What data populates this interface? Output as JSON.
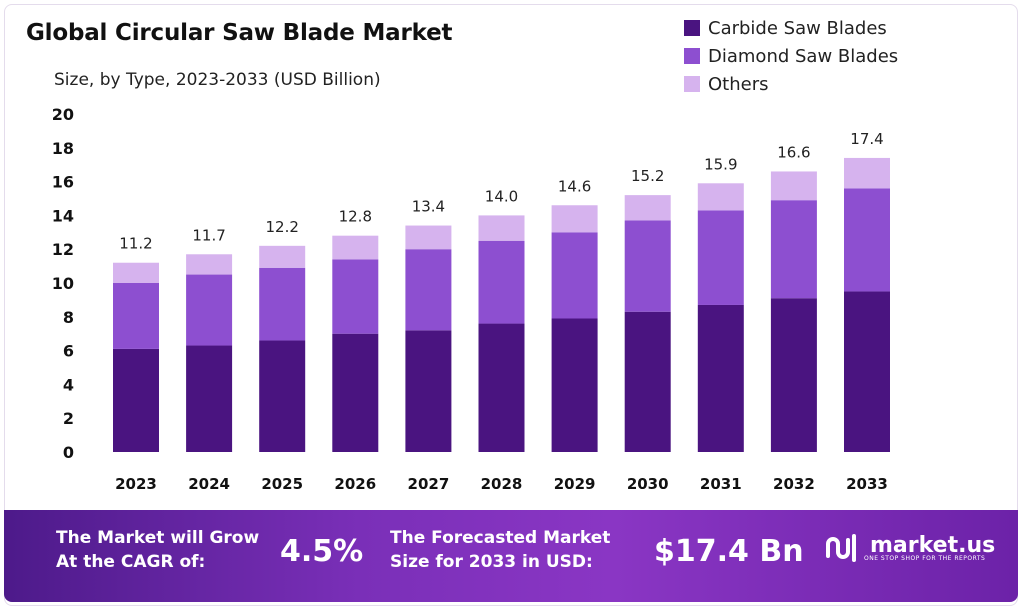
{
  "chart_data": {
    "type": "bar",
    "stacked": true,
    "title": "Global Circular Saw Blade Market",
    "subtitle": "Size, by Type, 2023-2033 (USD Billion)",
    "xlabel": "",
    "ylabel": "",
    "ylim": [
      0,
      20
    ],
    "yticks": [
      0,
      2,
      4,
      6,
      8,
      10,
      12,
      14,
      16,
      18,
      20
    ],
    "grid": false,
    "legend_position": "top-right",
    "categories": [
      "2023",
      "2024",
      "2025",
      "2026",
      "2027",
      "2028",
      "2029",
      "2030",
      "2031",
      "2032",
      "2033"
    ],
    "series": [
      {
        "name": "Carbide Saw Blades",
        "color": "#4a1480",
        "values": [
          6.1,
          6.3,
          6.6,
          7.0,
          7.2,
          7.6,
          7.9,
          8.3,
          8.7,
          9.1,
          9.5
        ]
      },
      {
        "name": "Diamond Saw Blades",
        "color": "#8d4fd0",
        "values": [
          3.9,
          4.2,
          4.3,
          4.4,
          4.8,
          4.9,
          5.1,
          5.4,
          5.6,
          5.8,
          6.1
        ]
      },
      {
        "name": "Others",
        "color": "#d6b3ee",
        "values": [
          1.2,
          1.2,
          1.3,
          1.4,
          1.4,
          1.5,
          1.6,
          1.5,
          1.6,
          1.7,
          1.8
        ]
      }
    ],
    "totals": [
      11.2,
      11.7,
      12.2,
      12.8,
      13.4,
      14.0,
      14.6,
      15.2,
      15.9,
      16.6,
      17.4
    ],
    "total_labels": [
      "11.2",
      "11.7",
      "12.2",
      "12.8",
      "13.4",
      "14.0",
      "14.6",
      "15.2",
      "15.9",
      "16.6",
      "17.4"
    ]
  },
  "banner": {
    "cagr_label_line1": "The Market will Grow",
    "cagr_label_line2": "At the CAGR of:",
    "cagr_value": "4.5%",
    "forecast_label_line1": "The Forecasted Market",
    "forecast_label_line2": "Size for 2033 in USD:",
    "forecast_value": "$17.4 Bn",
    "brand_name": "market.us",
    "brand_tagline": "ONE STOP SHOP FOR THE REPORTS",
    "brand_icon": "market-us-logo-icon"
  }
}
